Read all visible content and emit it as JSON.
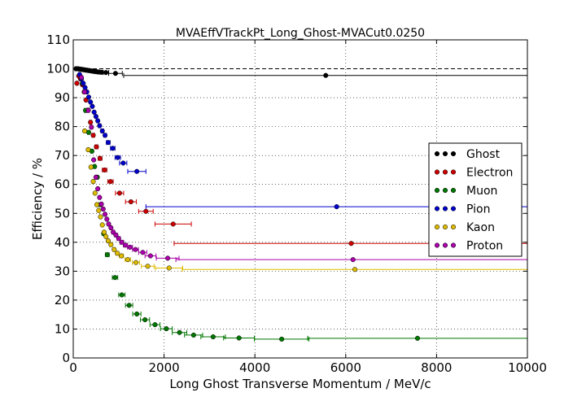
{
  "chart_data": {
    "type": "scatter",
    "title": "MVAEffVTrackPt_Long_Ghost-MVACut0.0250",
    "xlabel": "Long Ghost Transverse Momentum / MeV/c",
    "ylabel": "Efficiency / %",
    "xlim": [
      0,
      10000
    ],
    "ylim": [
      0,
      110
    ],
    "xticks": [
      0,
      2000,
      4000,
      6000,
      8000,
      10000
    ],
    "yticks": [
      0,
      10,
      20,
      30,
      40,
      50,
      60,
      70,
      80,
      90,
      100,
      110
    ],
    "grid": true,
    "legend_position": "right",
    "reference_line": 100,
    "series": [
      {
        "name": "Ghost",
        "color": "#000000",
        "x": [
          60,
          100,
          140,
          180,
          220,
          260,
          300,
          340,
          380,
          420,
          460,
          500,
          550,
          620,
          720,
          930,
          5560
        ],
        "y": [
          100,
          100,
          99.9,
          99.8,
          99.7,
          99.6,
          99.5,
          99.4,
          99.3,
          99.2,
          99.1,
          99.0,
          98.9,
          98.8,
          98.7,
          98.4,
          97.7
        ],
        "xerr": [
          20,
          20,
          20,
          20,
          20,
          20,
          20,
          20,
          20,
          20,
          20,
          20,
          25,
          35,
          60,
          150,
          4450
        ]
      },
      {
        "name": "Electron",
        "color": "#cc0000",
        "x": [
          80,
          120,
          160,
          200,
          240,
          280,
          330,
          380,
          440,
          510,
          590,
          690,
          820,
          1020,
          1270,
          1600,
          2200,
          6120
        ],
        "y": [
          95,
          97.5,
          96.5,
          94.5,
          92,
          89.2,
          85.7,
          81.5,
          77,
          73,
          69,
          65,
          61,
          57,
          54,
          50.7,
          46.3,
          39.6
        ],
        "xerr": [
          20,
          20,
          20,
          20,
          20,
          20,
          25,
          25,
          30,
          35,
          40,
          50,
          60,
          90,
          120,
          160,
          400,
          3900
        ]
      },
      {
        "name": "Muon",
        "color": "#007700",
        "x": [
          200,
          270,
          340,
          410,
          470,
          530,
          600,
          670,
          750,
          920,
          1070,
          1230,
          1400,
          1580,
          1800,
          2050,
          2340,
          2650,
          3080,
          3650,
          4590,
          7580
        ],
        "y": [
          95,
          85.6,
          78,
          71.5,
          66.2,
          62.5,
          53,
          43,
          35.7,
          27.8,
          21.8,
          18.2,
          15.2,
          13.2,
          11.5,
          10.1,
          8.8,
          7.9,
          7.3,
          6.9,
          6.5,
          6.8
        ],
        "xerr": [
          20,
          25,
          25,
          25,
          25,
          25,
          30,
          30,
          40,
          60,
          70,
          80,
          90,
          100,
          110,
          130,
          160,
          200,
          270,
          340,
          600,
          2420
        ]
      },
      {
        "name": "Pion",
        "color": "#0000cc",
        "x": [
          140,
          180,
          220,
          260,
          300,
          340,
          380,
          420,
          460,
          500,
          540,
          580,
          640,
          700,
          770,
          870,
          980,
          1100,
          1400,
          5800
        ],
        "y": [
          98,
          96.5,
          95,
          93.5,
          92,
          90.2,
          88.5,
          87,
          85,
          83.5,
          82,
          80.3,
          78.5,
          77,
          74.5,
          72.5,
          69.3,
          67.4,
          64.5,
          52.3
        ],
        "xerr": [
          20,
          20,
          20,
          20,
          20,
          20,
          20,
          20,
          20,
          20,
          20,
          25,
          30,
          30,
          40,
          50,
          60,
          80,
          200,
          4200
        ]
      },
      {
        "name": "Kaon",
        "color": "#ddbb00",
        "x": [
          250,
          330,
          390,
          440,
          480,
          520,
          560,
          600,
          640,
          680,
          720,
          770,
          830,
          900,
          970,
          1060,
          1200,
          1380,
          1640,
          2110,
          6200
        ],
        "y": [
          78.5,
          72,
          66,
          61,
          57,
          53,
          51,
          48.8,
          46,
          43.5,
          42,
          40.5,
          39.2,
          37.5,
          36.2,
          35.3,
          34,
          33,
          31.7,
          31.1,
          30.6
        ],
        "xerr": [
          20,
          25,
          25,
          25,
          20,
          20,
          20,
          20,
          20,
          20,
          20,
          25,
          30,
          30,
          35,
          45,
          60,
          80,
          140,
          300,
          3800
        ]
      },
      {
        "name": "Proton",
        "color": "#aa00aa",
        "x": [
          180,
          250,
          330,
          400,
          450,
          500,
          540,
          580,
          620,
          660,
          700,
          740,
          780,
          830,
          880,
          940,
          1000,
          1070,
          1150,
          1250,
          1370,
          1530,
          1700,
          2080,
          6160
        ],
        "y": [
          97,
          92,
          85.6,
          79.8,
          68.5,
          62.5,
          58.5,
          55.5,
          53.2,
          51.5,
          49.7,
          48,
          46.3,
          45,
          43.5,
          42.5,
          41.3,
          40,
          39,
          38.3,
          37.5,
          36.5,
          35.3,
          34.5,
          34
        ],
        "xerr": [
          20,
          25,
          25,
          25,
          20,
          20,
          20,
          20,
          20,
          20,
          20,
          20,
          25,
          25,
          30,
          30,
          35,
          40,
          45,
          55,
          65,
          90,
          120,
          250,
          3900
        ]
      }
    ]
  }
}
